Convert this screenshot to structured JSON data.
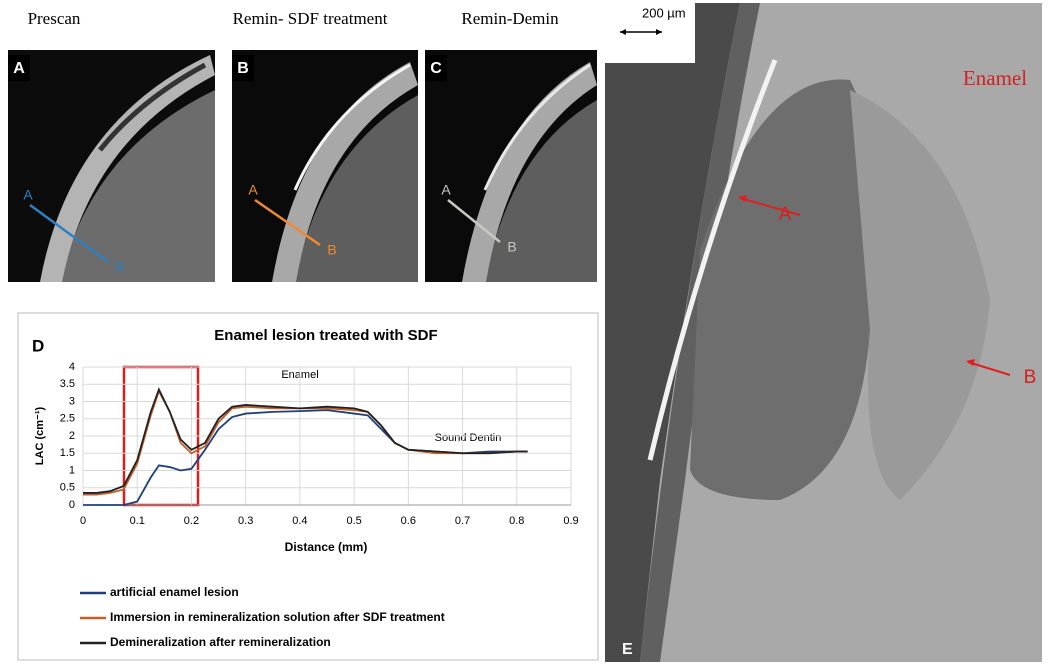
{
  "panels": [
    {
      "letter": "A",
      "title": "Prescan",
      "start": "A",
      "end": "B",
      "color": "#2f7fc1"
    },
    {
      "letter": "B",
      "title": "Remin- SDF treatment",
      "start": "A",
      "end": "B",
      "color": "#f08a30"
    },
    {
      "letter": "C",
      "title": "Remin-Demin",
      "start": "A",
      "end": "B",
      "color": "#c8c8c0"
    }
  ],
  "panel_d": {
    "letter": "D"
  },
  "panel_e": {
    "letter": "E",
    "scale": "200 µm",
    "label": "Enamel",
    "arrow_a": "A",
    "arrow_b": "B"
  },
  "chart_data": {
    "type": "line",
    "title": "Enamel lesion treated with SDF",
    "xlabel": "Distance (mm)",
    "ylabel": "LAC (cm⁻¹)",
    "annotations": [
      "Enamel",
      "Sound Dentin"
    ],
    "x": [
      0,
      0.025,
      0.05,
      0.075,
      0.1,
      0.125,
      0.14,
      0.16,
      0.18,
      0.2,
      0.225,
      0.25,
      0.275,
      0.3,
      0.35,
      0.4,
      0.45,
      0.5,
      0.525,
      0.55,
      0.575,
      0.6,
      0.65,
      0.7,
      0.75,
      0.8,
      0.82
    ],
    "series": [
      {
        "name": "artificial enamel lesion",
        "color": "#1f3f7a",
        "values": [
          0,
          0,
          0,
          0,
          0.1,
          0.8,
          1.15,
          1.1,
          1.0,
          1.05,
          1.6,
          2.2,
          2.55,
          2.65,
          2.7,
          2.72,
          2.75,
          2.65,
          2.6,
          2.2,
          1.8,
          1.6,
          1.55,
          1.5,
          1.55,
          1.55,
          1.55
        ]
      },
      {
        "name": "Immersion in remineralization solution after SDF treatment",
        "color": "#c0602a",
        "values": [
          0.3,
          0.3,
          0.35,
          0.45,
          1.2,
          2.6,
          3.3,
          2.7,
          1.8,
          1.5,
          1.7,
          2.4,
          2.8,
          2.85,
          2.8,
          2.8,
          2.8,
          2.75,
          2.7,
          2.3,
          1.8,
          1.6,
          1.5,
          1.5,
          1.5,
          1.55,
          1.55
        ]
      },
      {
        "name": "Demineralization after remineralization",
        "color": "#222222",
        "values": [
          0.35,
          0.35,
          0.4,
          0.55,
          1.3,
          2.7,
          3.35,
          2.7,
          1.9,
          1.6,
          1.8,
          2.5,
          2.85,
          2.9,
          2.85,
          2.8,
          2.85,
          2.8,
          2.7,
          2.3,
          1.8,
          1.6,
          1.55,
          1.5,
          1.5,
          1.55,
          1.55
        ]
      }
    ],
    "xlim": [
      0,
      0.9
    ],
    "xticks": [
      0,
      0.1,
      0.2,
      0.3,
      0.4,
      0.5,
      0.6,
      0.7,
      0.8,
      0.9
    ],
    "ylim": [
      0,
      4
    ],
    "yticks": [
      0,
      0.5,
      1,
      1.5,
      2,
      2.5,
      3,
      3.5,
      4
    ],
    "grid": true
  }
}
